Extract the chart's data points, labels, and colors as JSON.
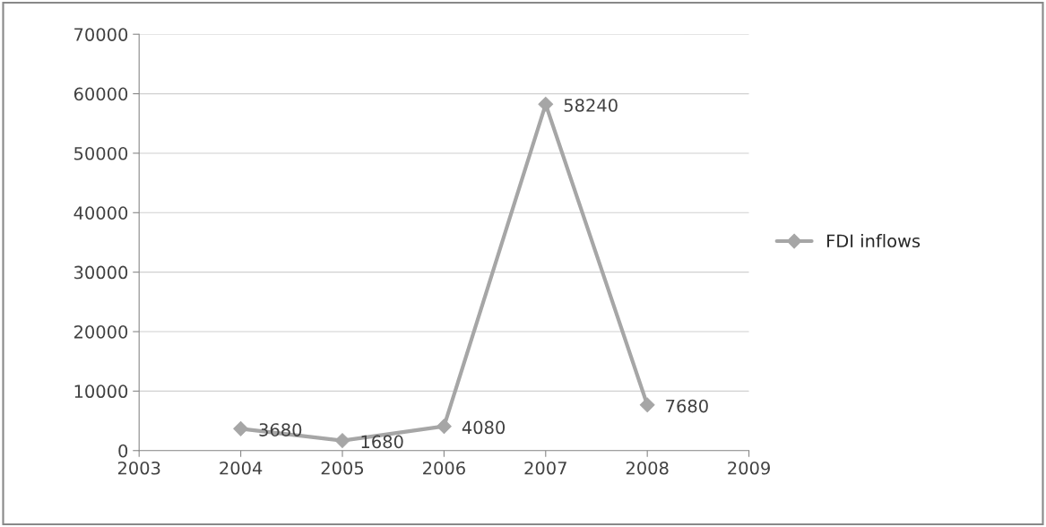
{
  "chart_data": {
    "type": "line",
    "x": [
      2004,
      2005,
      2006,
      2007,
      2008
    ],
    "series": [
      {
        "name": "FDI inflows",
        "color": "#a6a6a6",
        "values": [
          3680,
          1680,
          4080,
          58240,
          7680
        ]
      }
    ],
    "xlim": [
      2003,
      2009
    ],
    "xticks": [
      2003,
      2004,
      2005,
      2006,
      2007,
      2008,
      2009
    ],
    "ylim": [
      0,
      70000
    ],
    "yticks": [
      0,
      10000,
      20000,
      30000,
      40000,
      50000,
      60000,
      70000
    ],
    "grid": "y",
    "legend": "right",
    "marker": "diamond",
    "line_style": "solid",
    "data_labels": true
  }
}
